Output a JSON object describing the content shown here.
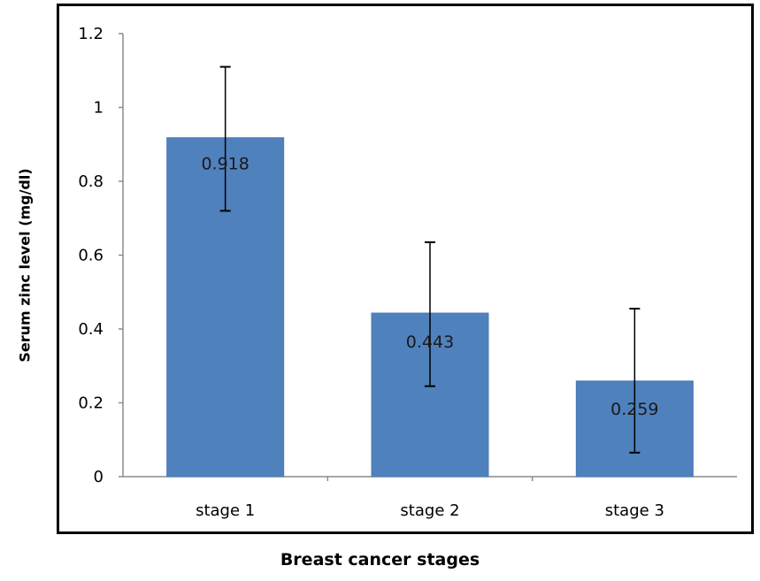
{
  "chart_data": {
    "type": "bar",
    "categories": [
      "stage 1",
      "stage 2",
      "stage 3"
    ],
    "values": [
      0.918,
      0.443,
      0.259
    ],
    "error_bars": [
      {
        "low": 0.72,
        "high": 1.11
      },
      {
        "low": 0.245,
        "high": 0.635
      },
      {
        "low": 0.065,
        "high": 0.455
      }
    ],
    "data_labels": [
      "0.918",
      "0.443",
      "0.259"
    ],
    "xlabel": "Breast cancer stages",
    "ylabel": "Serum zinc level (mg/dl)",
    "ylim": [
      0,
      1.2
    ],
    "yticks": [
      0,
      0.2,
      0.4,
      0.6,
      0.8,
      1,
      1.2
    ],
    "ytick_labels": [
      "0",
      "0.2",
      "0.4",
      "0.6",
      "0.8",
      "1",
      "1.2"
    ],
    "grid": false,
    "bar_color": "#4f81bd",
    "bar_edge_color": "#4a7ab5"
  }
}
